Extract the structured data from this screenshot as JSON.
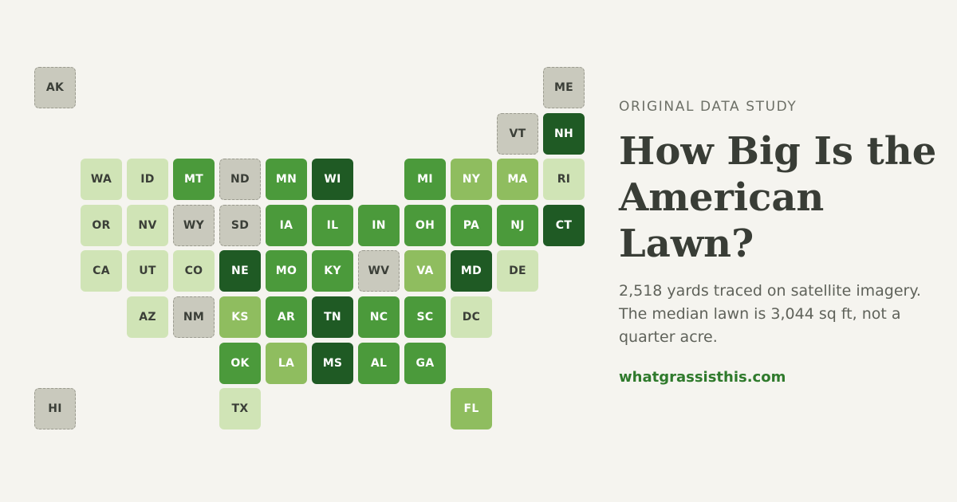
{
  "map": {
    "states": [
      {
        "code": "AK",
        "level": 0
      },
      {
        "code": "ME",
        "level": 0
      },
      {
        "code": "VT",
        "level": 0
      },
      {
        "code": "NH",
        "level": 4
      },
      {
        "code": "WA",
        "level": 1
      },
      {
        "code": "ID",
        "level": 1
      },
      {
        "code": "MT",
        "level": 3
      },
      {
        "code": "ND",
        "level": 0
      },
      {
        "code": "MN",
        "level": 3
      },
      {
        "code": "WI",
        "level": 4
      },
      {
        "code": "MI",
        "level": 3
      },
      {
        "code": "NY",
        "level": 2
      },
      {
        "code": "MA",
        "level": 2
      },
      {
        "code": "RI",
        "level": 1
      },
      {
        "code": "OR",
        "level": 1
      },
      {
        "code": "NV",
        "level": 1
      },
      {
        "code": "WY",
        "level": 0
      },
      {
        "code": "SD",
        "level": 0
      },
      {
        "code": "IA",
        "level": 3
      },
      {
        "code": "IL",
        "level": 3
      },
      {
        "code": "IN",
        "level": 3
      },
      {
        "code": "OH",
        "level": 3
      },
      {
        "code": "PA",
        "level": 3
      },
      {
        "code": "NJ",
        "level": 3
      },
      {
        "code": "CT",
        "level": 4
      },
      {
        "code": "CA",
        "level": 1
      },
      {
        "code": "UT",
        "level": 1
      },
      {
        "code": "CO",
        "level": 1
      },
      {
        "code": "NE",
        "level": 4
      },
      {
        "code": "MO",
        "level": 3
      },
      {
        "code": "KY",
        "level": 3
      },
      {
        "code": "WV",
        "level": 0
      },
      {
        "code": "VA",
        "level": 2
      },
      {
        "code": "MD",
        "level": 4
      },
      {
        "code": "DE",
        "level": 1
      },
      {
        "code": "AZ",
        "level": 1
      },
      {
        "code": "NM",
        "level": 0
      },
      {
        "code": "KS",
        "level": 2
      },
      {
        "code": "AR",
        "level": 3
      },
      {
        "code": "TN",
        "level": 4
      },
      {
        "code": "NC",
        "level": 3
      },
      {
        "code": "SC",
        "level": 3
      },
      {
        "code": "DC",
        "level": 1
      },
      {
        "code": "OK",
        "level": 3
      },
      {
        "code": "LA",
        "level": 2
      },
      {
        "code": "MS",
        "level": 4
      },
      {
        "code": "AL",
        "level": 3
      },
      {
        "code": "GA",
        "level": 3
      },
      {
        "code": "HI",
        "level": 0
      },
      {
        "code": "TX",
        "level": 1
      },
      {
        "code": "FL",
        "level": 2
      }
    ]
  },
  "panel": {
    "eyebrow": "ORIGINAL DATA STUDY",
    "headline": "How Big Is the American Lawn?",
    "subtitle": "2,518 yards traced on satellite imagery. The median lawn is 3,044 sq ft, not a quarter acre.",
    "site": "whatgrassisthis.com"
  }
}
